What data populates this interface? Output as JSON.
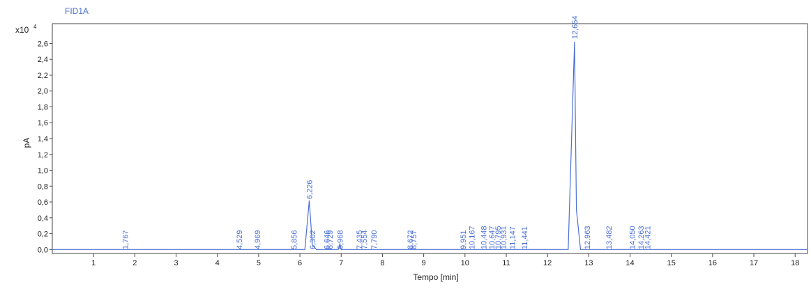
{
  "chart_data": {
    "type": "line",
    "title": "FID1A",
    "xlabel": "Tempo [min]",
    "ylabel": "pA",
    "y_multiplier": "x10",
    "y_exponent": "4",
    "xlim": [
      0,
      18.3
    ],
    "ylim": [
      -0.05,
      2.85
    ],
    "x_ticks": [
      1,
      2,
      3,
      4,
      5,
      6,
      7,
      8,
      9,
      10,
      11,
      12,
      13,
      14,
      15,
      16,
      17,
      18
    ],
    "y_ticks": [
      "0,0",
      "0,2",
      "0,4",
      "0,6",
      "0,8",
      "1,0",
      "1,2",
      "1,4",
      "1,6",
      "1,8",
      "2,0",
      "2,2",
      "2,4",
      "2,6"
    ],
    "grid": false,
    "series": [
      {
        "x": [
          0,
          6.12,
          6.226,
          6.3,
          6.4,
          6.93,
          6.968,
          7.0,
          12.5,
          12.654,
          12.7,
          12.8,
          18.3
        ],
        "y": [
          0,
          0,
          0.62,
          0.06,
          0,
          0,
          0.07,
          0,
          0,
          2.62,
          0.5,
          0,
          0
        ]
      }
    ],
    "peak_labels": [
      {
        "x": 1.767,
        "text": "1,767"
      },
      {
        "x": 4.529,
        "text": "4,529"
      },
      {
        "x": 4.969,
        "text": "4,969"
      },
      {
        "x": 5.856,
        "text": "5,856"
      },
      {
        "x": 6.226,
        "text": "6,226"
      },
      {
        "x": 6.302,
        "text": "6,302"
      },
      {
        "x": 6.646,
        "text": "6,646"
      },
      {
        "x": 6.729,
        "text": "6,729"
      },
      {
        "x": 6.968,
        "text": "6,968"
      },
      {
        "x": 7.435,
        "text": "7,435"
      },
      {
        "x": 7.554,
        "text": "7,554"
      },
      {
        "x": 7.79,
        "text": "7,790"
      },
      {
        "x": 8.672,
        "text": "8,672"
      },
      {
        "x": 8.757,
        "text": "8,757"
      },
      {
        "x": 9.951,
        "text": "9,951"
      },
      {
        "x": 10.167,
        "text": "10,167"
      },
      {
        "x": 10.448,
        "text": "10,448"
      },
      {
        "x": 10.647,
        "text": "10,647"
      },
      {
        "x": 10.795,
        "text": "10,795"
      },
      {
        "x": 10.931,
        "text": "10,931"
      },
      {
        "x": 11.147,
        "text": "11,147"
      },
      {
        "x": 11.441,
        "text": "11,441"
      },
      {
        "x": 12.654,
        "text": "12,654"
      },
      {
        "x": 12.963,
        "text": "12,963"
      },
      {
        "x": 13.482,
        "text": "13,482"
      },
      {
        "x": 14.05,
        "text": "14,050"
      },
      {
        "x": 14.263,
        "text": "14,263"
      },
      {
        "x": 14.421,
        "text": "14,421"
      }
    ],
    "colors": {
      "trace": "#4a6fd4",
      "label": "#4a6fd4",
      "axis": "#444444",
      "text": "#222222",
      "title": "#4a6fd4"
    }
  }
}
